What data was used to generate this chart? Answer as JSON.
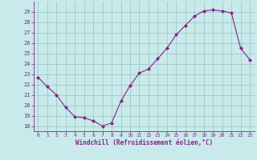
{
  "x": [
    0,
    1,
    2,
    3,
    4,
    5,
    6,
    7,
    8,
    9,
    10,
    11,
    12,
    13,
    14,
    15,
    16,
    17,
    18,
    19,
    20,
    21,
    22,
    23
  ],
  "y": [
    22.7,
    21.8,
    21.0,
    19.8,
    18.9,
    18.8,
    18.5,
    18.0,
    18.3,
    20.4,
    21.9,
    23.1,
    23.5,
    24.5,
    25.5,
    26.8,
    27.7,
    28.6,
    29.1,
    29.2,
    29.1,
    28.9,
    25.5,
    24.4
  ],
  "line_color": "#882288",
  "marker": "D",
  "marker_size": 2.0,
  "bg_color": "#c8eaea",
  "grid_color": "#a0c8c8",
  "xlabel": "Windchill (Refroidissement éolien,°C)",
  "xlabel_color": "#882288",
  "tick_color": "#882288",
  "ylim": [
    17.5,
    30.0
  ],
  "xlim": [
    -0.5,
    23.5
  ],
  "yticks": [
    18,
    19,
    20,
    21,
    22,
    23,
    24,
    25,
    26,
    27,
    28,
    29
  ],
  "xticks": [
    0,
    1,
    2,
    3,
    4,
    5,
    6,
    7,
    8,
    9,
    10,
    11,
    12,
    13,
    14,
    15,
    16,
    17,
    18,
    19,
    20,
    21,
    22,
    23
  ]
}
